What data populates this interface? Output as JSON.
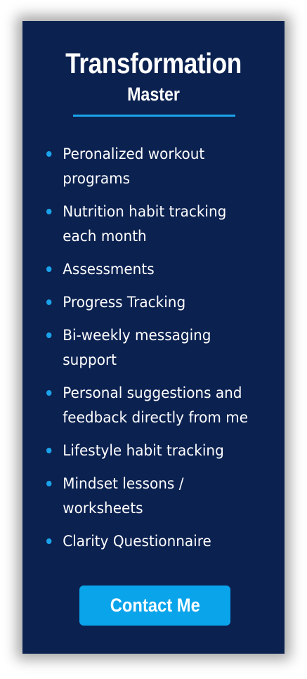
{
  "card": {
    "title": "Transformation",
    "subtitle": "Master",
    "features": [
      "Peronalized workout programs",
      "Nutrition habit tracking each month",
      "Assessments",
      "Progress Tracking",
      "Bi-weekly messaging support",
      "Personal suggestions and feedback directly from me",
      "Lifestyle habit tracking",
      "Mindset lessons / worksheets",
      "Clarity Questionnaire"
    ],
    "cta_label": "Contact Me"
  },
  "colors": {
    "card_background": "#0b2150",
    "accent": "#1aa3ea",
    "button": "#0aa4eb",
    "text": "#ffffff"
  },
  "icons": {
    "bullet": "bullet-dot-icon"
  }
}
